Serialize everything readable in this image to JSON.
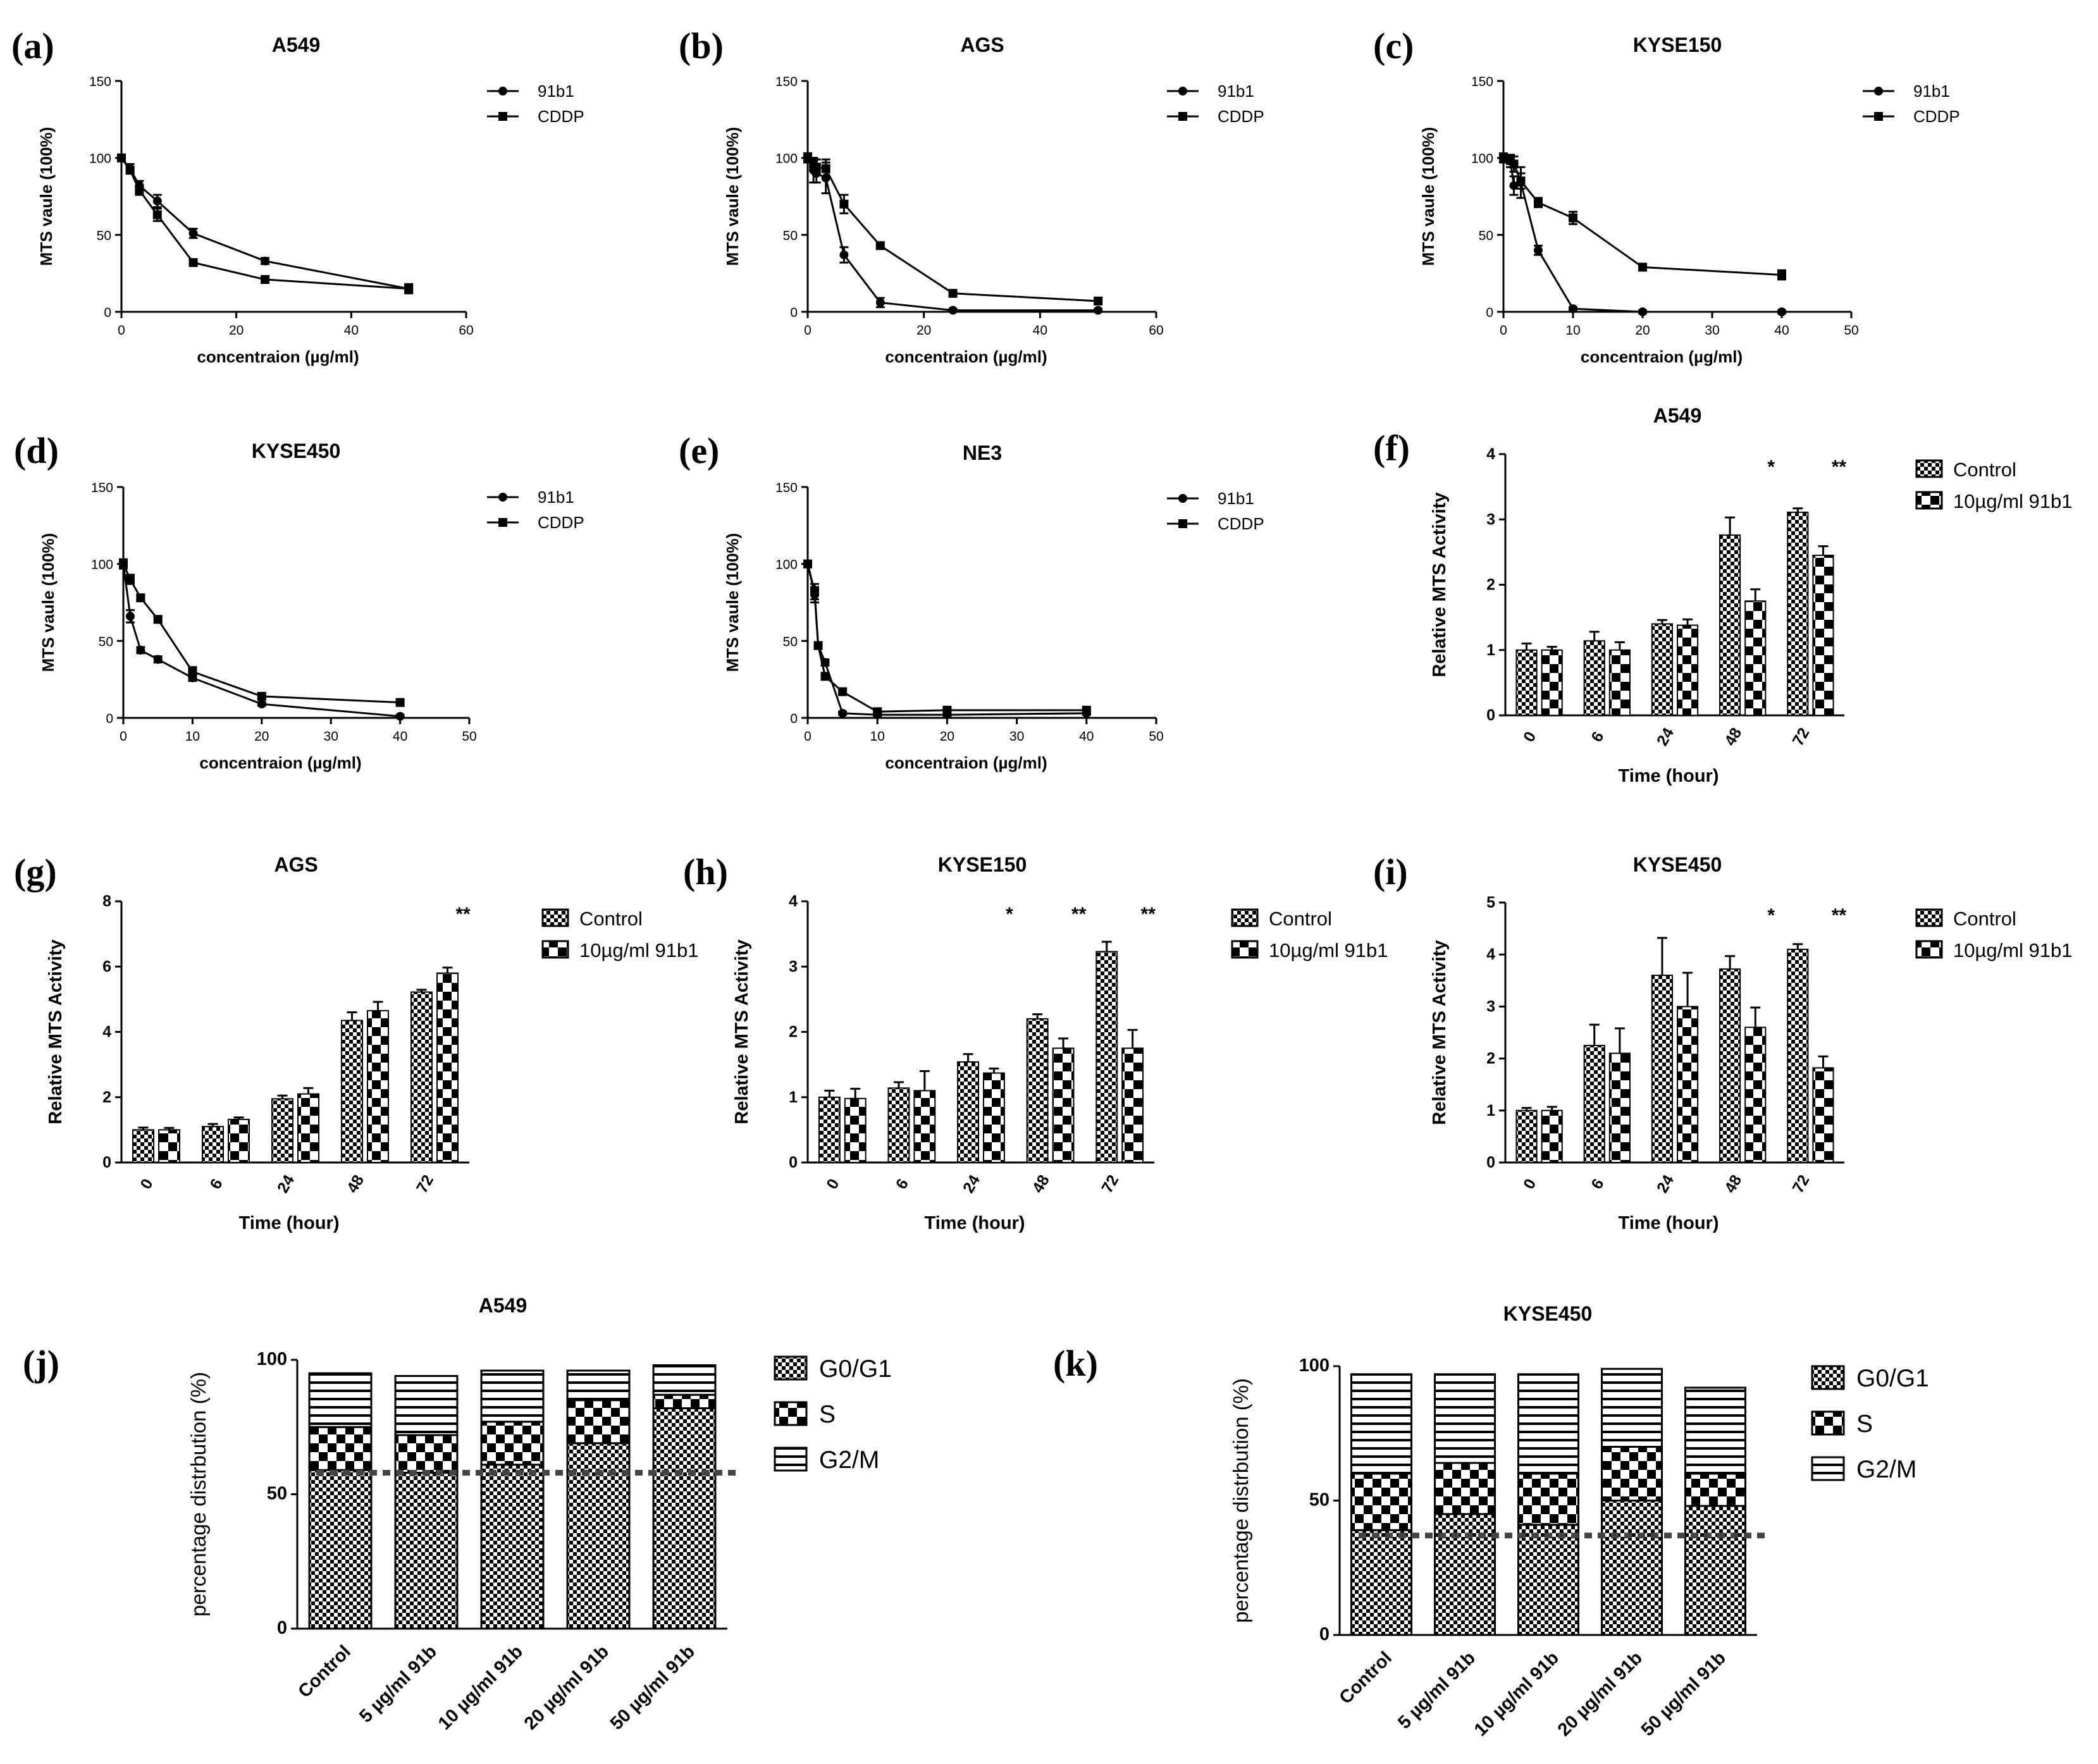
{
  "chart_data": [
    {
      "panel": "(a)",
      "title": "A549",
      "type": "line",
      "xlabel": "concentraion (µg/ml)",
      "ylabel": "MTS vaule (100%)",
      "xlim": [
        0,
        60
      ],
      "xticks": [
        0,
        20,
        40,
        60
      ],
      "ylim": [
        0,
        150
      ],
      "yticks": [
        0,
        50,
        100,
        150
      ],
      "series": [
        {
          "name": "91b1",
          "marker": "circle",
          "x": [
            0,
            1.5,
            3.125,
            6.25,
            12.5,
            25,
            50
          ],
          "y": [
            100,
            93,
            82,
            72,
            51,
            33,
            15
          ],
          "err": [
            2,
            3,
            3,
            4,
            3,
            2,
            2
          ]
        },
        {
          "name": "CDDP",
          "marker": "square",
          "x": [
            0,
            1.5,
            3.125,
            6.25,
            12.5,
            25,
            50
          ],
          "y": [
            100,
            92,
            79,
            63,
            32,
            21,
            15
          ],
          "err": [
            2,
            2,
            3,
            4,
            2,
            2,
            3
          ]
        }
      ]
    },
    {
      "panel": "(b)",
      "title": "AGS",
      "type": "line",
      "xlabel": "concentraion (µg/ml)",
      "ylabel": "MTS vaule (100%)",
      "xlim": [
        0,
        60
      ],
      "xticks": [
        0,
        20,
        40,
        60
      ],
      "ylim": [
        0,
        150
      ],
      "yticks": [
        0,
        50,
        100,
        150
      ],
      "series": [
        {
          "name": "91b1",
          "marker": "circle",
          "x": [
            0,
            1,
            1.5,
            3.125,
            6.25,
            12.5,
            25,
            50
          ],
          "y": [
            100,
            92,
            90,
            87,
            37,
            6,
            1,
            1
          ],
          "err": [
            3,
            8,
            6,
            10,
            5,
            3,
            1,
            1
          ]
        },
        {
          "name": "CDDP",
          "marker": "square",
          "x": [
            0,
            1,
            1.5,
            3.125,
            6.25,
            12.5,
            25,
            50
          ],
          "y": [
            100,
            96,
            94,
            93,
            70,
            43,
            12,
            7
          ],
          "err": [
            3,
            4,
            5,
            6,
            6,
            2,
            2,
            2
          ]
        }
      ]
    },
    {
      "panel": "(c)",
      "title": "KYSE150",
      "type": "line",
      "xlabel": "concentraion (µg/ml)",
      "ylabel": "MTS vaule (100%)",
      "xlim": [
        0,
        50
      ],
      "xticks": [
        0,
        10,
        20,
        30,
        40,
        50
      ],
      "ylim": [
        0,
        150
      ],
      "yticks": [
        0,
        50,
        100,
        150
      ],
      "series": [
        {
          "name": "91b1",
          "marker": "circle",
          "x": [
            0,
            1,
            1.5,
            2.5,
            5,
            10,
            20,
            40
          ],
          "y": [
            100,
            98,
            82,
            84,
            40,
            2,
            0,
            0
          ],
          "err": [
            3,
            4,
            6,
            10,
            3,
            1,
            1,
            1
          ]
        },
        {
          "name": "CDDP",
          "marker": "square",
          "x": [
            0,
            1,
            1.5,
            2.5,
            5,
            10,
            20,
            40
          ],
          "y": [
            100,
            99,
            96,
            85,
            71,
            61,
            29,
            24
          ],
          "err": [
            2,
            3,
            5,
            5,
            3,
            4,
            2,
            3
          ]
        }
      ]
    },
    {
      "panel": "(d)",
      "title": "KYSE450",
      "type": "line",
      "xlabel": "concentraion (µg/ml)",
      "ylabel": "MTS vaule (100%)",
      "xlim": [
        0,
        50
      ],
      "xticks": [
        0,
        10,
        20,
        30,
        40,
        50
      ],
      "ylim": [
        0,
        150
      ],
      "yticks": [
        0,
        50,
        100,
        150
      ],
      "series": [
        {
          "name": "91b1",
          "marker": "circle",
          "x": [
            0,
            1,
            2.5,
            5,
            10,
            20,
            40
          ],
          "y": [
            100,
            66,
            44,
            38,
            26,
            9,
            1
          ],
          "err": [
            3,
            4,
            2,
            2,
            2,
            1,
            1
          ]
        },
        {
          "name": "CDDP",
          "marker": "square",
          "x": [
            0,
            1,
            2.5,
            5,
            10,
            20,
            40
          ],
          "y": [
            100,
            90,
            78,
            64,
            30,
            14,
            10
          ],
          "err": [
            3,
            3,
            2,
            2,
            3,
            2,
            1
          ]
        }
      ]
    },
    {
      "panel": "(e)",
      "title": "NE3",
      "type": "line",
      "xlabel": "concentraion (µg/ml)",
      "ylabel": "MTS vaule (100%)",
      "xlim": [
        0,
        50
      ],
      "xticks": [
        0,
        10,
        20,
        30,
        40,
        50
      ],
      "ylim": [
        0,
        150
      ],
      "yticks": [
        0,
        50,
        100,
        150
      ],
      "series": [
        {
          "name": "91b1",
          "marker": "circle",
          "x": [
            0,
            1,
            1.5,
            2.5,
            5,
            10,
            20,
            40
          ],
          "y": [
            100,
            80,
            47,
            36,
            3,
            2,
            2,
            3
          ],
          "err": [
            2,
            5,
            2,
            2,
            1,
            1,
            1,
            1
          ]
        },
        {
          "name": "CDDP",
          "marker": "square",
          "x": [
            0,
            1,
            1.5,
            2.5,
            5,
            10,
            20,
            40
          ],
          "y": [
            100,
            82,
            47,
            27,
            17,
            4,
            5,
            5
          ],
          "err": [
            2,
            5,
            2,
            2,
            2,
            1,
            1,
            1
          ]
        }
      ]
    },
    {
      "panel": "(f)",
      "title": "A549",
      "type": "bar",
      "xlabel": "Time (hour)",
      "ylabel": "Relative MTS Activity",
      "categories": [
        "0",
        "6",
        "24",
        "48",
        "72"
      ],
      "ylim": [
        0,
        4
      ],
      "yticks": [
        0,
        1,
        2,
        3,
        4
      ],
      "series": [
        {
          "name": "Control",
          "pattern": "check-small",
          "values": [
            1.0,
            1.14,
            1.4,
            2.76,
            3.11
          ],
          "err": [
            0.1,
            0.14,
            0.06,
            0.27,
            0.06
          ]
        },
        {
          "name": "10µg/ml 91b1",
          "pattern": "check-large",
          "values": [
            1.0,
            1.0,
            1.38,
            1.75,
            2.45
          ],
          "err": [
            0.05,
            0.12,
            0.09,
            0.18,
            0.14
          ]
        }
      ],
      "annotations": [
        {
          "category": "48",
          "text": "*"
        },
        {
          "category": "72",
          "text": "**"
        }
      ]
    },
    {
      "panel": "(g)",
      "title": "AGS",
      "type": "bar",
      "xlabel": "Time (hour)",
      "ylabel": "Relative MTS Activity",
      "categories": [
        "0",
        "6",
        "24",
        "48",
        "72"
      ],
      "ylim": [
        0,
        8
      ],
      "yticks": [
        0,
        2,
        4,
        6,
        8
      ],
      "series": [
        {
          "name": "Control",
          "pattern": "check-small",
          "values": [
            1.0,
            1.1,
            1.95,
            4.35,
            5.22
          ],
          "err": [
            0.07,
            0.08,
            0.1,
            0.25,
            0.07
          ]
        },
        {
          "name": "10µg/ml 91b1",
          "pattern": "check-large",
          "values": [
            1.0,
            1.32,
            2.1,
            4.65,
            5.8
          ],
          "err": [
            0.06,
            0.06,
            0.18,
            0.27,
            0.17
          ]
        }
      ],
      "annotations": [
        {
          "category": "72",
          "text": "**"
        }
      ]
    },
    {
      "panel": "(h)",
      "title": "KYSE150",
      "type": "bar",
      "xlabel": "Time (hour)",
      "ylabel": "Relative MTS Activity",
      "categories": [
        "0",
        "6",
        "24",
        "48",
        "72"
      ],
      "ylim": [
        0,
        4
      ],
      "yticks": [
        0,
        1,
        2,
        3,
        4
      ],
      "series": [
        {
          "name": "Control",
          "pattern": "check-small",
          "values": [
            1.0,
            1.14,
            1.54,
            2.2,
            3.23
          ],
          "err": [
            0.1,
            0.09,
            0.12,
            0.07,
            0.15
          ]
        },
        {
          "name": "10µg/ml 91b1",
          "pattern": "check-large",
          "values": [
            0.98,
            1.1,
            1.37,
            1.75,
            1.75
          ],
          "err": [
            0.15,
            0.3,
            0.07,
            0.15,
            0.28
          ]
        }
      ],
      "annotations": [
        {
          "category": "24",
          "text": "*"
        },
        {
          "category": "48",
          "text": "**"
        },
        {
          "category": "72",
          "text": "**"
        }
      ]
    },
    {
      "panel": "(i)",
      "title": "KYSE450",
      "type": "bar",
      "xlabel": "Time (hour)",
      "ylabel": "Relative MTS Activity",
      "categories": [
        "0",
        "6",
        "24",
        "48",
        "72"
      ],
      "ylim": [
        0,
        5
      ],
      "yticks": [
        0,
        1,
        2,
        3,
        4,
        5
      ],
      "series": [
        {
          "name": "Control",
          "pattern": "check-small",
          "values": [
            1.0,
            2.25,
            3.6,
            3.72,
            4.1
          ],
          "err": [
            0.05,
            0.4,
            0.72,
            0.25,
            0.1
          ]
        },
        {
          "name": "10µg/ml 91b1",
          "pattern": "check-large",
          "values": [
            1.0,
            2.1,
            3.0,
            2.6,
            1.82
          ],
          "err": [
            0.07,
            0.48,
            0.65,
            0.38,
            0.22
          ]
        }
      ],
      "annotations": [
        {
          "category": "48",
          "text": "*"
        },
        {
          "category": "72",
          "text": "**"
        }
      ]
    },
    {
      "panel": "(j)",
      "title": "A549",
      "type": "stacked-bar",
      "xlabel": "",
      "ylabel": "percentage distrbution (%)",
      "categories": [
        "Control",
        "5 µg/ml 91b",
        "10 µg/ml 91b",
        "20 µg/ml  91b",
        "50 µg/ml 91b"
      ],
      "ylim": [
        0,
        100
      ],
      "yticks": [
        0,
        50,
        100
      ],
      "reference_line": 58,
      "series": [
        {
          "name": "G0/G1",
          "pattern": "check-small",
          "values": [
            59,
            58,
            61,
            69,
            82
          ]
        },
        {
          "name": "S",
          "pattern": "check-large",
          "values": [
            16,
            14,
            16,
            16,
            5
          ]
        },
        {
          "name": "G2/M",
          "pattern": "hstripe",
          "values": [
            20,
            22,
            19,
            11,
            11
          ]
        }
      ]
    },
    {
      "panel": "(k)",
      "title": "KYSE450",
      "type": "stacked-bar",
      "xlabel": "",
      "ylabel": "percentage distrbution (%)",
      "categories": [
        "Control",
        "5 µg/ml 91b",
        "10 µg/ml 91b",
        "20 µg/ml  91b",
        "50 µg/ml 91b"
      ],
      "ylim": [
        0,
        100
      ],
      "yticks": [
        0,
        50,
        100
      ],
      "reference_line": 37,
      "series": [
        {
          "name": "G0/G1",
          "pattern": "check-small",
          "values": [
            39,
            45,
            41,
            50,
            48
          ]
        },
        {
          "name": "S",
          "pattern": "check-large",
          "values": [
            21,
            19,
            19,
            20,
            12
          ]
        },
        {
          "name": "G2/M",
          "pattern": "hstripe",
          "values": [
            37,
            33,
            37,
            29,
            32
          ]
        }
      ]
    }
  ]
}
